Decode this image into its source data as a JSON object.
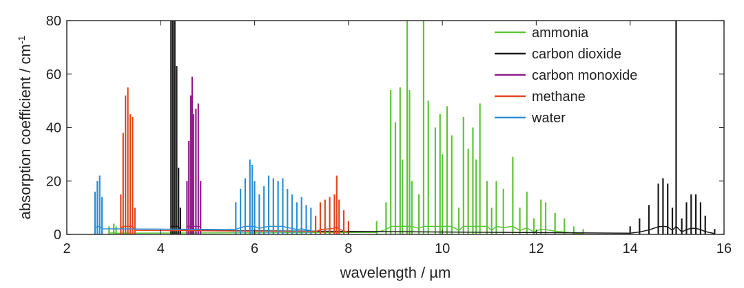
{
  "chart_data": {
    "type": "line",
    "xlabel": "wavelength / µm",
    "ylabel": "absorption coefficient / cm",
    "ylabel_superscript": "-1",
    "xlim": [
      2,
      16
    ],
    "ylim": [
      0,
      80
    ],
    "xticks": [
      2,
      4,
      6,
      8,
      10,
      12,
      14,
      16
    ],
    "yticks": [
      0,
      20,
      40,
      60,
      80
    ],
    "legend_position": "top-right",
    "grid": false,
    "series": [
      {
        "name": "ammonia",
        "color": "#5ec43a",
        "x": [
          2.9,
          3.0,
          3.05,
          8.6,
          8.8,
          8.9,
          9.0,
          9.1,
          9.15,
          9.25,
          9.3,
          9.35,
          9.5,
          9.6,
          9.7,
          9.85,
          9.95,
          10.0,
          10.1,
          10.2,
          10.35,
          10.45,
          10.55,
          10.65,
          10.72,
          10.8,
          10.95,
          11.05,
          11.15,
          11.3,
          11.5,
          11.65,
          11.8,
          11.95,
          12.1,
          12.2,
          12.4,
          12.6,
          12.8,
          13.0
        ],
        "y": [
          3,
          4,
          3,
          5,
          12,
          54,
          42,
          55,
          28,
          80,
          54,
          20,
          15,
          80,
          50,
          40,
          45,
          30,
          48,
          37,
          10,
          44,
          32,
          40,
          28,
          49,
          20,
          10,
          20,
          17,
          29,
          10,
          16,
          6,
          13,
          12,
          8,
          6,
          3,
          2
        ]
      },
      {
        "name": "carbon dioxide",
        "color": "#1a1a1a",
        "x": [
          4.22,
          4.26,
          4.3,
          4.34,
          4.38,
          4.42,
          14.0,
          14.2,
          14.4,
          14.6,
          14.7,
          14.8,
          14.9,
          14.98,
          15.1,
          15.2,
          15.3,
          15.4,
          15.5,
          15.6,
          15.8
        ],
        "y": [
          80,
          80,
          80,
          63,
          25,
          10,
          3,
          6,
          11,
          19,
          21,
          19,
          10,
          80,
          6,
          12,
          15,
          15,
          12,
          7,
          2
        ]
      },
      {
        "name": "carbon monoxide",
        "color": "#8e1f8a",
        "x": [
          4.56,
          4.6,
          4.64,
          4.67,
          4.7,
          4.75,
          4.8,
          4.85
        ],
        "y": [
          20,
          35,
          52,
          59,
          45,
          47,
          49,
          20
        ]
      },
      {
        "name": "methane",
        "color": "#e0471f",
        "x": [
          3.15,
          3.2,
          3.25,
          3.3,
          3.35,
          3.4,
          3.45,
          7.3,
          7.4,
          7.5,
          7.6,
          7.7,
          7.75,
          7.8,
          7.9,
          8.0
        ],
        "y": [
          15,
          38,
          52,
          55,
          45,
          44,
          10,
          7,
          12,
          13,
          14,
          15,
          22,
          13,
          9,
          5
        ]
      },
      {
        "name": "water",
        "color": "#2d8fd6",
        "x": [
          2.6,
          2.65,
          2.7,
          2.75,
          5.6,
          5.7,
          5.8,
          5.9,
          5.95,
          6.0,
          6.1,
          6.2,
          6.3,
          6.4,
          6.5,
          6.6,
          6.7,
          6.8,
          6.9,
          7.0,
          7.1,
          7.2
        ],
        "y": [
          16,
          20,
          22,
          14,
          12,
          17,
          21,
          28,
          26,
          20,
          15,
          18,
          22,
          21,
          20,
          21,
          17,
          15,
          12,
          14,
          11,
          10
        ]
      }
    ]
  }
}
